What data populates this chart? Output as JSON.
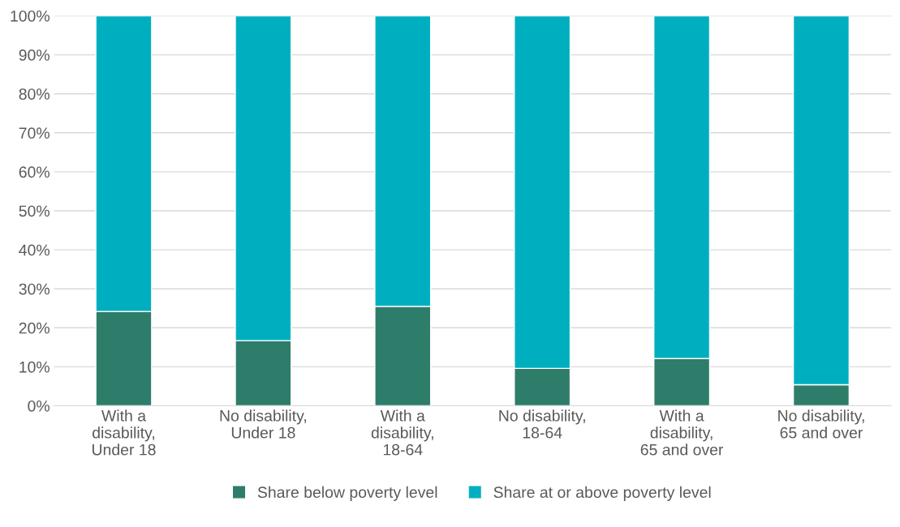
{
  "chart_data": {
    "type": "bar",
    "stacked": true,
    "categories": [
      "With a\ndisability,\nUnder 18",
      "No disability,\nUnder 18",
      "With a\ndisability,\n18-64",
      "No disability,\n18-64",
      "With a\ndisability,\n65 and over",
      "No disability,\n65 and over"
    ],
    "series": [
      {
        "name": "Share below poverty level",
        "color": "#2e7d6a",
        "values": [
          24.2,
          16.7,
          25.5,
          9.6,
          12.1,
          5.4
        ]
      },
      {
        "name": "Share at or above poverty level",
        "color": "#00afbf",
        "values": [
          75.8,
          83.3,
          74.5,
          90.4,
          87.9,
          94.6
        ]
      }
    ],
    "ylim": [
      0,
      100
    ],
    "yticks": [
      {
        "value": 0,
        "label": "0%"
      },
      {
        "value": 10,
        "label": "10%"
      },
      {
        "value": 20,
        "label": "20%"
      },
      {
        "value": 30,
        "label": "30%"
      },
      {
        "value": 40,
        "label": "40%"
      },
      {
        "value": 50,
        "label": "50%"
      },
      {
        "value": 60,
        "label": "60%"
      },
      {
        "value": 70,
        "label": "70%"
      },
      {
        "value": 80,
        "label": "80%"
      },
      {
        "value": 90,
        "label": "90%"
      },
      {
        "value": 100,
        "label": "100%"
      }
    ],
    "grid": "y",
    "legend": "bottom"
  }
}
